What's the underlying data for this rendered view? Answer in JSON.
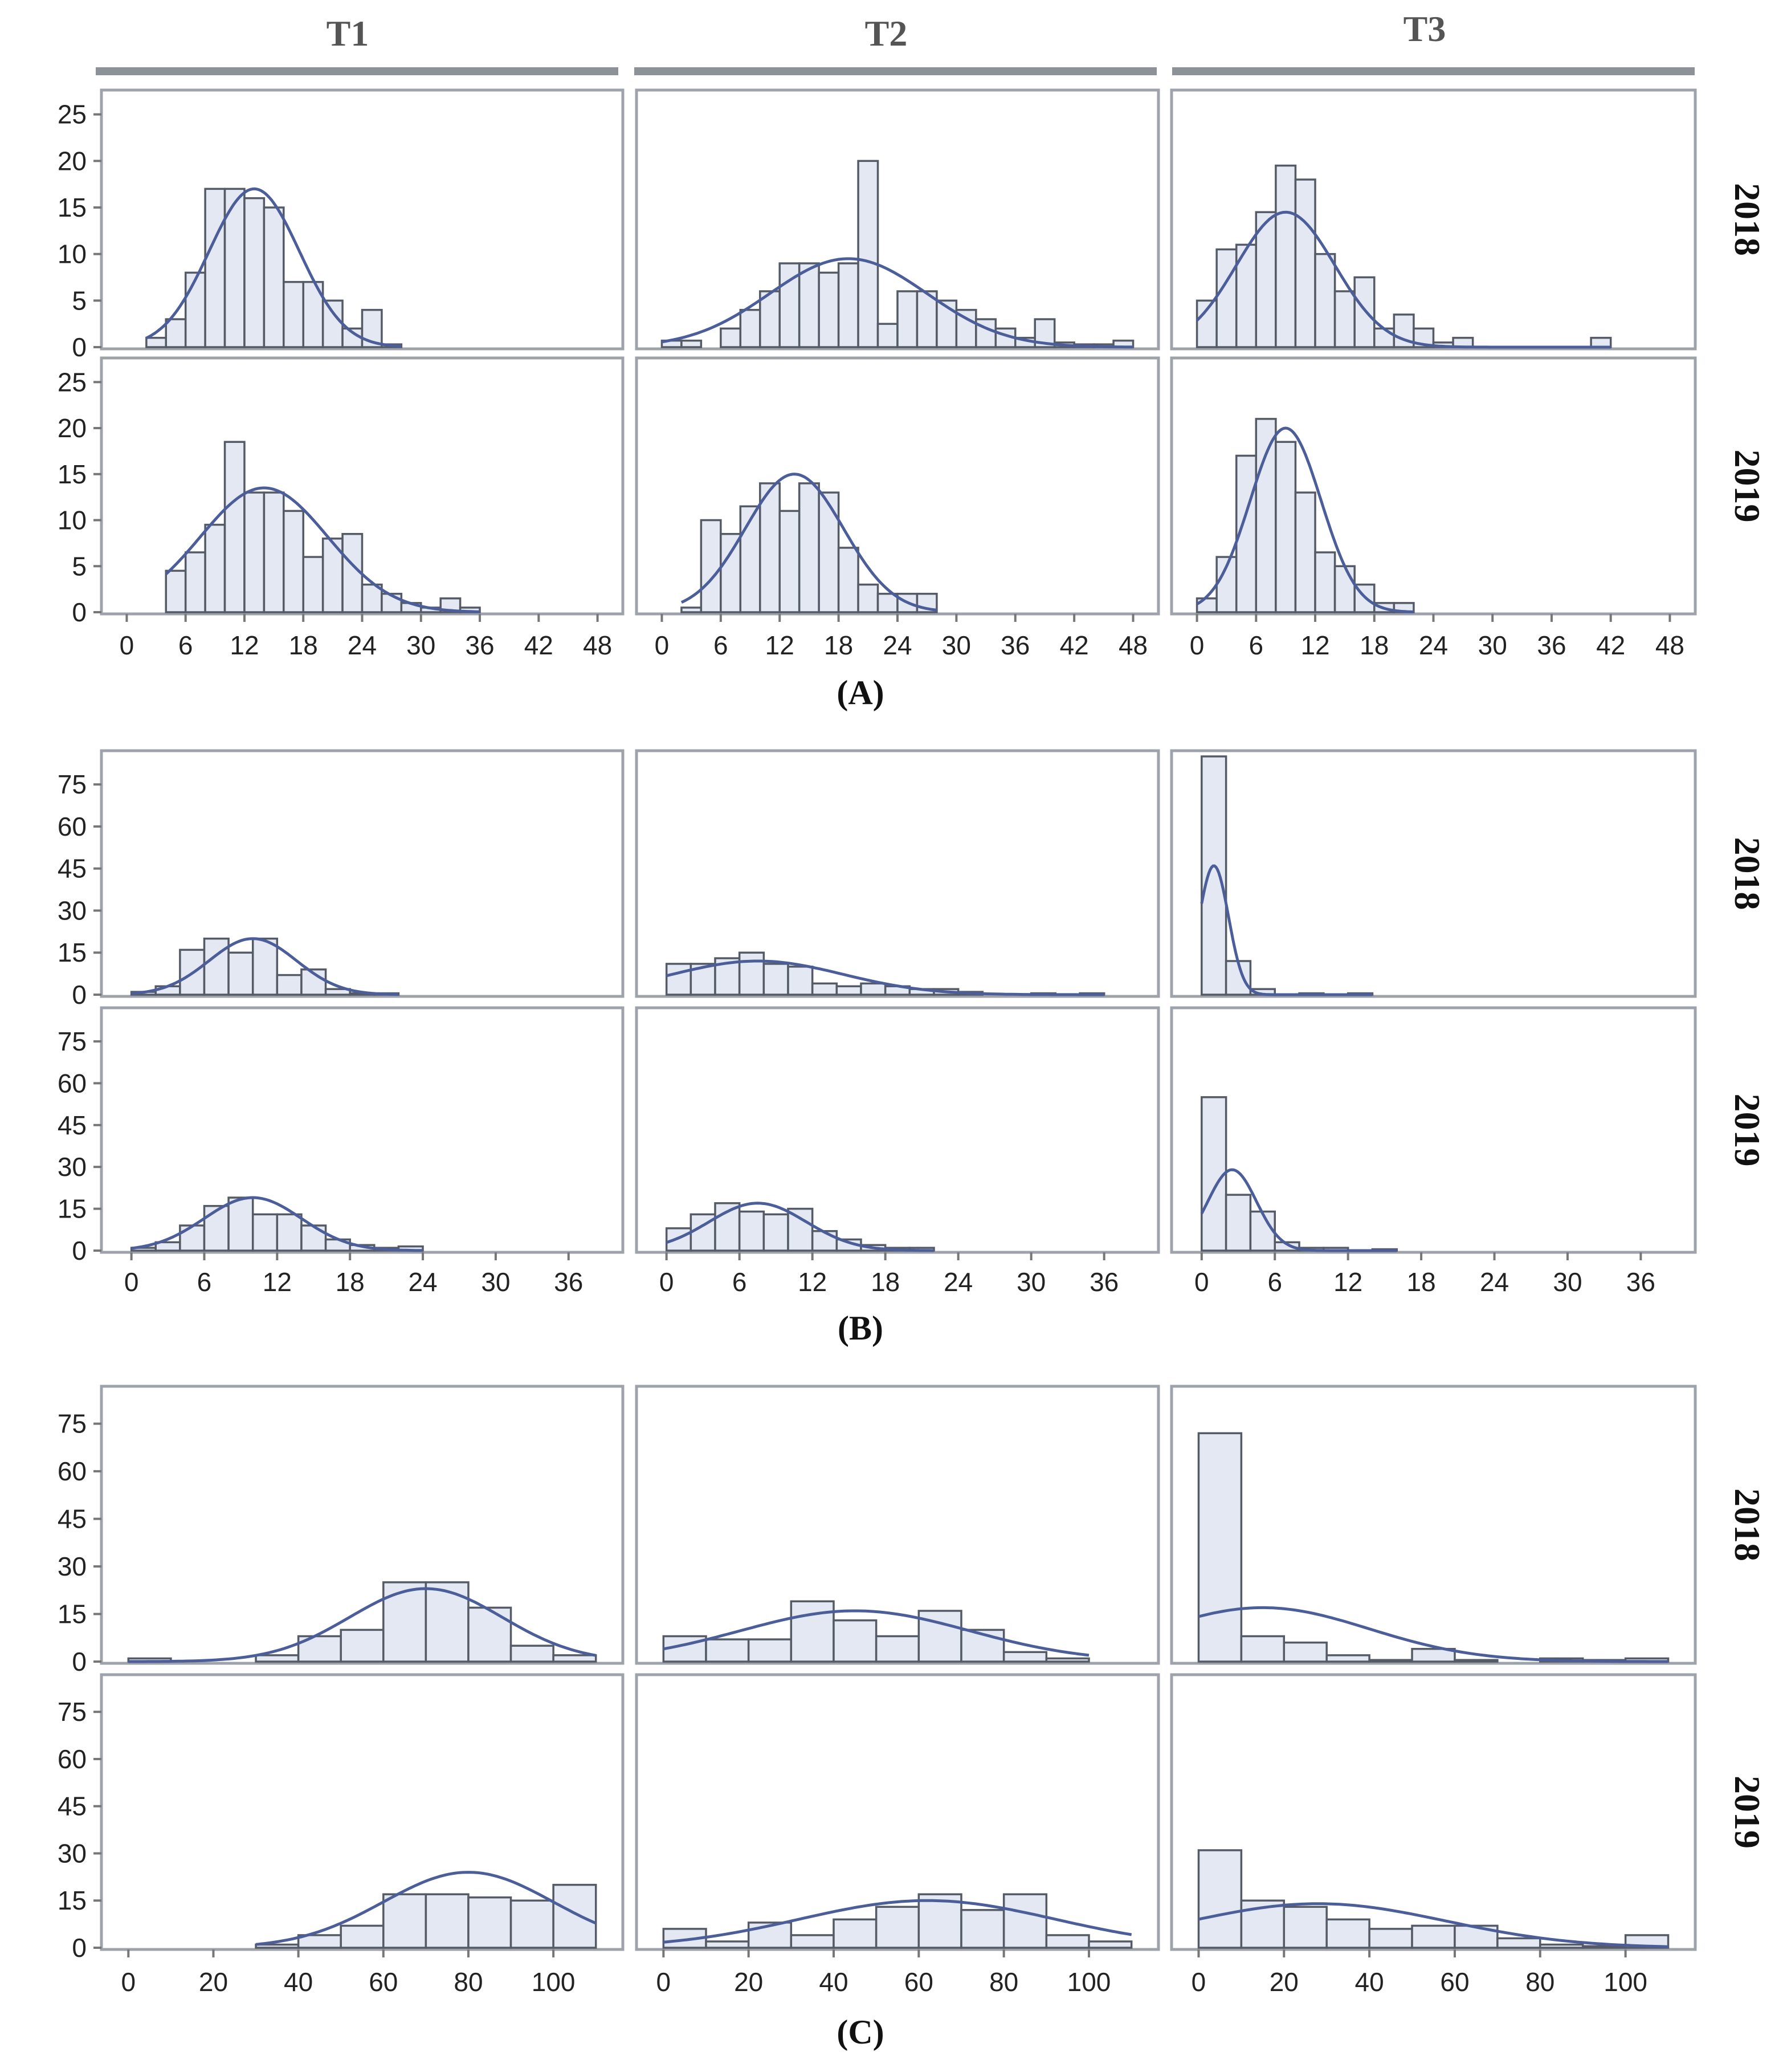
{
  "chart_data": {
    "type": "histogram-grid",
    "col_titles": [
      "T1",
      "T2",
      "T3"
    ],
    "row_titles": [
      "2018",
      "2019"
    ],
    "blocks": [
      {
        "label": "(A)",
        "y_ticks": [
          0,
          5,
          10,
          15,
          20,
          25
        ],
        "y_max": 27,
        "x_ticks": [
          0,
          6,
          12,
          18,
          24,
          30,
          36,
          42,
          48
        ],
        "x_range": [
          -2,
          50
        ],
        "panels": [
          {
            "row": "2018",
            "col": "T1",
            "bin_width": 2,
            "bin_start": 2,
            "counts": [
              1,
              3,
              8,
              17,
              17,
              16,
              15,
              7,
              7,
              5,
              2,
              4,
              0.3
            ],
            "curve_peak": 17,
            "curve_mean": 13,
            "curve_sd": 4.6
          },
          {
            "row": "2018",
            "col": "T2",
            "bin_width": 2,
            "bin_start": 0,
            "counts": [
              0.7,
              0.7,
              0,
              2,
              4,
              6,
              9,
              9,
              8,
              9,
              20,
              2.5,
              6,
              6,
              5,
              4,
              3,
              2,
              1,
              3,
              0.5,
              0.3,
              0.3,
              0.7
            ],
            "curve_peak": 9.5,
            "curve_mean": 19,
            "curve_sd": 8
          },
          {
            "row": "2018",
            "col": "T3",
            "bin_width": 2,
            "bin_start": 0,
            "counts": [
              5,
              10.5,
              11,
              14.5,
              19.5,
              18,
              10,
              6,
              7.5,
              2,
              3.5,
              2,
              0.5,
              1,
              0,
              0,
              0,
              0,
              0,
              0,
              1
            ],
            "curve_peak": 14.5,
            "curve_mean": 9,
            "curve_sd": 5
          },
          {
            "row": "2019",
            "col": "T1",
            "bin_width": 2,
            "bin_start": 4,
            "counts": [
              4.5,
              6.5,
              9.5,
              18.5,
              13,
              13,
              11,
              6,
              8,
              8.5,
              3,
              2,
              1,
              0.5,
              1.5,
              0.5
            ],
            "curve_peak": 13.5,
            "curve_mean": 14,
            "curve_sd": 6.5
          },
          {
            "row": "2019",
            "col": "T2",
            "bin_width": 2,
            "bin_start": 2,
            "counts": [
              0.5,
              10,
              8.5,
              11.5,
              14,
              11,
              14,
              13,
              7,
              3,
              2,
              2,
              2
            ],
            "curve_peak": 15,
            "curve_mean": 13.5,
            "curve_sd": 5
          },
          {
            "row": "2019",
            "col": "T3",
            "bin_width": 2,
            "bin_start": 0,
            "counts": [
              1.5,
              6,
              17,
              21,
              18.5,
              13,
              6.5,
              5,
              3,
              1,
              1
            ],
            "curve_peak": 20,
            "curve_mean": 9,
            "curve_sd": 3.6
          }
        ]
      },
      {
        "label": "(B)",
        "y_ticks": [
          0,
          15,
          30,
          45,
          60,
          75
        ],
        "y_max": 85,
        "x_ticks": [
          0,
          6,
          12,
          18,
          24,
          30,
          36
        ],
        "x_range": [
          -2,
          40
        ],
        "panels": [
          {
            "row": "2018",
            "col": "T1",
            "bin_width": 2,
            "bin_start": 0,
            "counts": [
              1,
              3,
              16,
              20,
              15,
              20,
              7,
              9,
              2,
              0.5,
              0.5
            ],
            "curve_peak": 20,
            "curve_mean": 10,
            "curve_sd": 3.6
          },
          {
            "row": "2018",
            "col": "T2",
            "bin_width": 2,
            "bin_start": 0,
            "counts": [
              11,
              11,
              13,
              15,
              11,
              10,
              4,
              3,
              4,
              3,
              2,
              2,
              1,
              0,
              0,
              0.5,
              0,
              0.5
            ],
            "curve_peak": 12,
            "curve_mean": 7.5,
            "curve_sd": 7
          },
          {
            "row": "2018",
            "col": "T3",
            "bin_width": 2,
            "bin_start": 0,
            "counts": [
              85,
              12,
              2,
              0,
              0.5,
              0,
              0.5
            ],
            "curve_peak": 46,
            "curve_mean": 1,
            "curve_sd": 1.2
          },
          {
            "row": "2019",
            "col": "T1",
            "bin_width": 2,
            "bin_start": 0,
            "counts": [
              1,
              3,
              9,
              16,
              19,
              13,
              13,
              9,
              4,
              2,
              1,
              1.5
            ],
            "curve_peak": 19,
            "curve_mean": 10,
            "curve_sd": 4
          },
          {
            "row": "2019",
            "col": "T2",
            "bin_width": 2,
            "bin_start": 0,
            "counts": [
              8,
              13,
              17,
              14,
              13,
              15,
              7,
              4,
              2,
              1,
              1
            ],
            "curve_peak": 17,
            "curve_mean": 7.5,
            "curve_sd": 4
          },
          {
            "row": "2019",
            "col": "T3",
            "bin_width": 2,
            "bin_start": 0,
            "counts": [
              55,
              20,
              14,
              3,
              1,
              1,
              0,
              0.5
            ],
            "curve_peak": 29,
            "curve_mean": 2.5,
            "curve_sd": 2
          },
          "__"
        ]
      },
      {
        "label": "(C)",
        "y_ticks": [
          0,
          15,
          30,
          45,
          60,
          75
        ],
        "y_max": 85,
        "x_ticks": [
          0,
          20,
          40,
          60,
          80,
          100
        ],
        "x_range": [
          -5,
          115
        ],
        "panels": [
          {
            "row": "2018",
            "col": "T1",
            "bin_width": 10,
            "bin_start": 0,
            "counts": [
              1,
              0,
              0,
              2,
              8,
              10,
              25,
              25,
              17,
              5,
              2
            ],
            "curve_peak": 23,
            "curve_mean": 70,
            "curve_sd": 18
          },
          {
            "row": "2018",
            "col": "T2",
            "bin_width": 10,
            "bin_start": 0,
            "counts": [
              8,
              7,
              7,
              19,
              13,
              8,
              16,
              10,
              3,
              1
            ],
            "curve_peak": 16,
            "curve_mean": 45,
            "curve_sd": 27
          },
          {
            "row": "2018",
            "col": "T3",
            "bin_width": 10,
            "bin_start": 0,
            "counts": [
              72,
              8,
              6,
              2,
              0.5,
              4,
              0.5,
              0,
              1,
              0.5,
              1
            ],
            "curve_peak": 17,
            "curve_mean": 15,
            "curve_sd": 25
          },
          {
            "row": "2019",
            "col": "T1",
            "bin_width": 10,
            "bin_start": 30,
            "counts": [
              1,
              4,
              7,
              17,
              17,
              16,
              15,
              20
            ],
            "curve_peak": 24,
            "curve_mean": 80,
            "curve_sd": 20
          },
          {
            "row": "2019",
            "col": "T2",
            "bin_width": 10,
            "bin_start": 0,
            "counts": [
              6,
              2,
              8,
              4,
              9,
              13,
              17,
              12,
              17,
              4,
              2
            ],
            "curve_peak": 15,
            "curve_mean": 62,
            "curve_sd": 30
          },
          {
            "row": "2019",
            "col": "T3",
            "bin_width": 10,
            "bin_start": 0,
            "counts": [
              31,
              15,
              13,
              9,
              6,
              7,
              7,
              3,
              1,
              0.5,
              4
            ],
            "curve_peak": 14,
            "curve_mean": 28,
            "curve_sd": 30
          }
        ]
      }
    ]
  }
}
